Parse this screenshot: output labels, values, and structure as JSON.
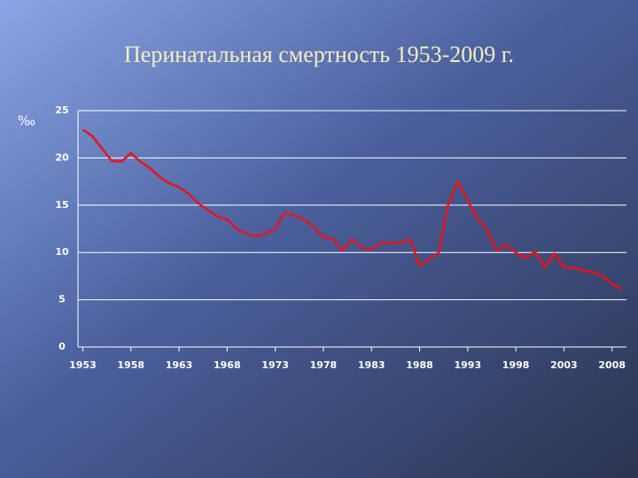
{
  "chart_data": {
    "type": "line",
    "title": "Перинатальная смертность 1953-2009 г.",
    "y_label": "‰",
    "x": [
      1953,
      1954,
      1955,
      1956,
      1957,
      1958,
      1959,
      1960,
      1961,
      1962,
      1963,
      1964,
      1965,
      1966,
      1967,
      1968,
      1969,
      1970,
      1971,
      1972,
      1973,
      1974,
      1975,
      1976,
      1977,
      1978,
      1979,
      1980,
      1981,
      1982,
      1983,
      1984,
      1985,
      1986,
      1987,
      1988,
      1989,
      1990,
      1991,
      1992,
      1993,
      1994,
      1995,
      1996,
      1997,
      1998,
      1999,
      2000,
      2001,
      2002,
      2003,
      2004,
      2005,
      2006,
      2007,
      2008,
      2009
    ],
    "series": [
      {
        "name": "Перинатальная смертность",
        "color": "#e8121c",
        "values": [
          23.0,
          22.3,
          21.0,
          19.7,
          19.6,
          20.5,
          19.6,
          18.9,
          18.0,
          17.3,
          16.9,
          16.2,
          15.2,
          14.5,
          13.8,
          13.5,
          12.5,
          12.0,
          11.7,
          12.0,
          12.5,
          14.2,
          13.9,
          13.5,
          12.7,
          11.6,
          11.4,
          10.2,
          11.4,
          10.5,
          10.3,
          11.0,
          11.0,
          11.0,
          11.4,
          8.6,
          9.3,
          10.0,
          15.2,
          17.5,
          15.5,
          13.6,
          12.4,
          10.2,
          10.8,
          10.0,
          9.4,
          10.1,
          8.4,
          9.9,
          8.4,
          8.4,
          8.1,
          7.9,
          7.5,
          6.7,
          6.1
        ]
      }
    ],
    "xlim": [
      1952.5,
      2009.5
    ],
    "xticks": [
      1953,
      1958,
      1963,
      1968,
      1973,
      1978,
      1983,
      1988,
      1993,
      1998,
      2003,
      2008
    ],
    "ylim": [
      0,
      25
    ],
    "yticks": [
      0,
      5,
      10,
      15,
      20,
      25
    ],
    "grid": true
  }
}
